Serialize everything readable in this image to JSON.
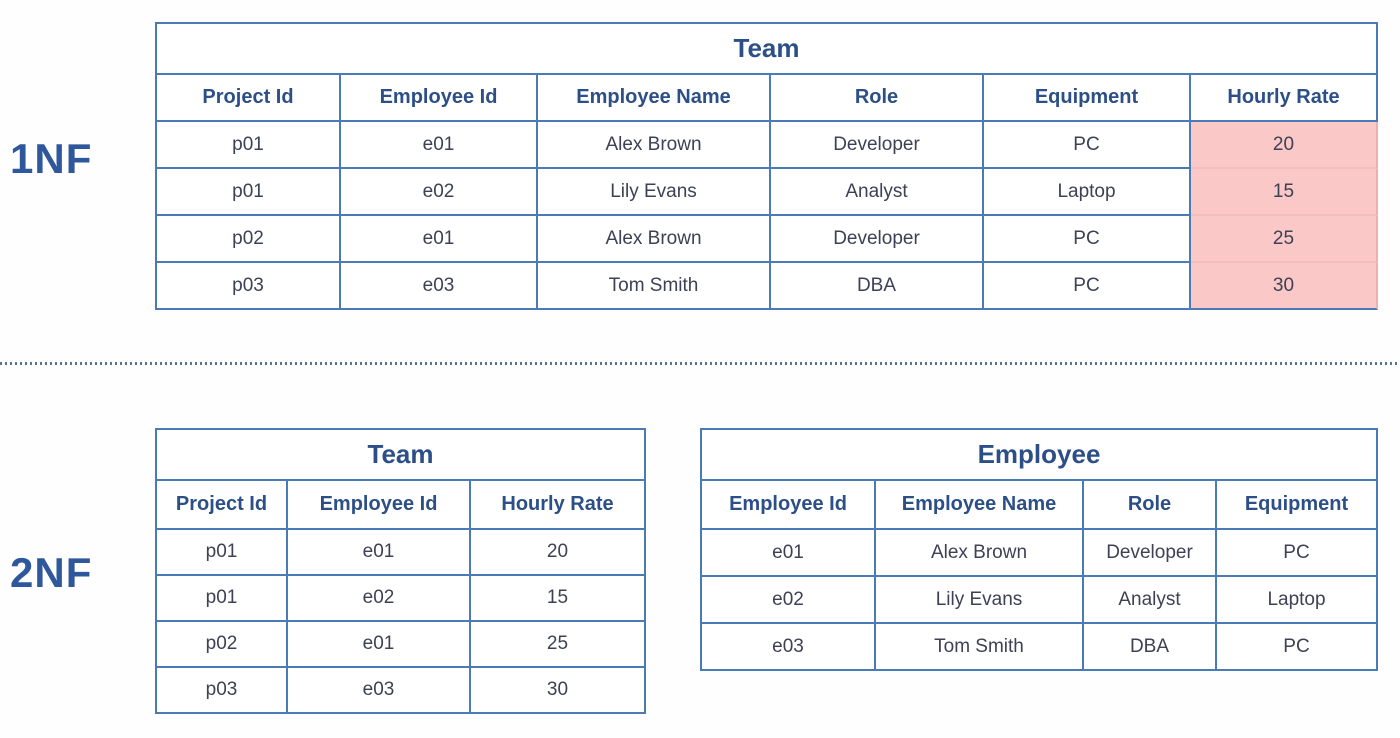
{
  "colors": {
    "table_border": "#4a7bb7",
    "header_text": "#2d4f87",
    "label_text": "#2f579b",
    "data_text": "#3e4155",
    "highlight_bg": "#f9c8c7",
    "highlight_border": "#eeb0af",
    "divider": "#54748f"
  },
  "sections": [
    {
      "label": "1NF"
    },
    {
      "label": "2NF"
    }
  ],
  "tables": {
    "team_1nf": {
      "title": "Team",
      "columns": [
        "Project Id",
        "Employee Id",
        "Employee Name",
        "Role",
        "Equipment",
        "Hourly Rate"
      ],
      "rows": [
        [
          "p01",
          "e01",
          "Alex Brown",
          "Developer",
          "PC",
          "20"
        ],
        [
          "p01",
          "e02",
          "Lily Evans",
          "Analyst",
          "Laptop",
          "15"
        ],
        [
          "p02",
          "e01",
          "Alex Brown",
          "Developer",
          "PC",
          "25"
        ],
        [
          "p03",
          "e03",
          "Tom Smith",
          "DBA",
          "PC",
          "30"
        ]
      ],
      "highlight_column": "Hourly Rate",
      "highlight_col_index": 5
    },
    "team_2nf": {
      "title": "Team",
      "columns": [
        "Project Id",
        "Employee Id",
        "Hourly Rate"
      ],
      "rows": [
        [
          "p01",
          "e01",
          "20"
        ],
        [
          "p01",
          "e02",
          "15"
        ],
        [
          "p02",
          "e01",
          "25"
        ],
        [
          "p03",
          "e03",
          "30"
        ]
      ],
      "highlight_col_index": -1
    },
    "employee": {
      "title": "Employee",
      "columns": [
        "Employee Id",
        "Employee Name",
        "Role",
        "Equipment"
      ],
      "rows": [
        [
          "e01",
          "Alex Brown",
          "Developer",
          "PC"
        ],
        [
          "e02",
          "Lily Evans",
          "Analyst",
          "Laptop"
        ],
        [
          "e03",
          "Tom Smith",
          "DBA",
          "PC"
        ]
      ],
      "highlight_col_index": -1
    }
  }
}
